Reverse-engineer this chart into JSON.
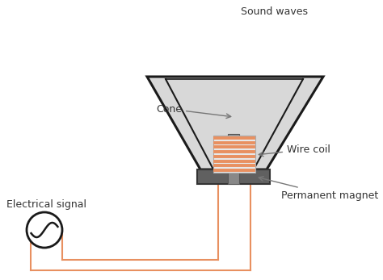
{
  "bg_color": "#ffffff",
  "label_cone": "Cone",
  "label_wire_coil": "Wire coil",
  "label_permanent_magnet": "Permanent magnet",
  "label_electrical_signal": "Electrical signal",
  "label_sound_waves": "Sound waves",
  "cone_color": "#d8d8d8",
  "cone_edge_color": "#1a1a1a",
  "magnet_color": "#606060",
  "coil_color": "#e89060",
  "wire_color": "#e89060",
  "signal_circle_color": "#1a1a1a",
  "sound_wave_color": "#1a1a1a",
  "annotation_color": "#333333",
  "arrow_color": "#777777",
  "figw": 4.74,
  "figh": 3.47,
  "dpi": 100
}
